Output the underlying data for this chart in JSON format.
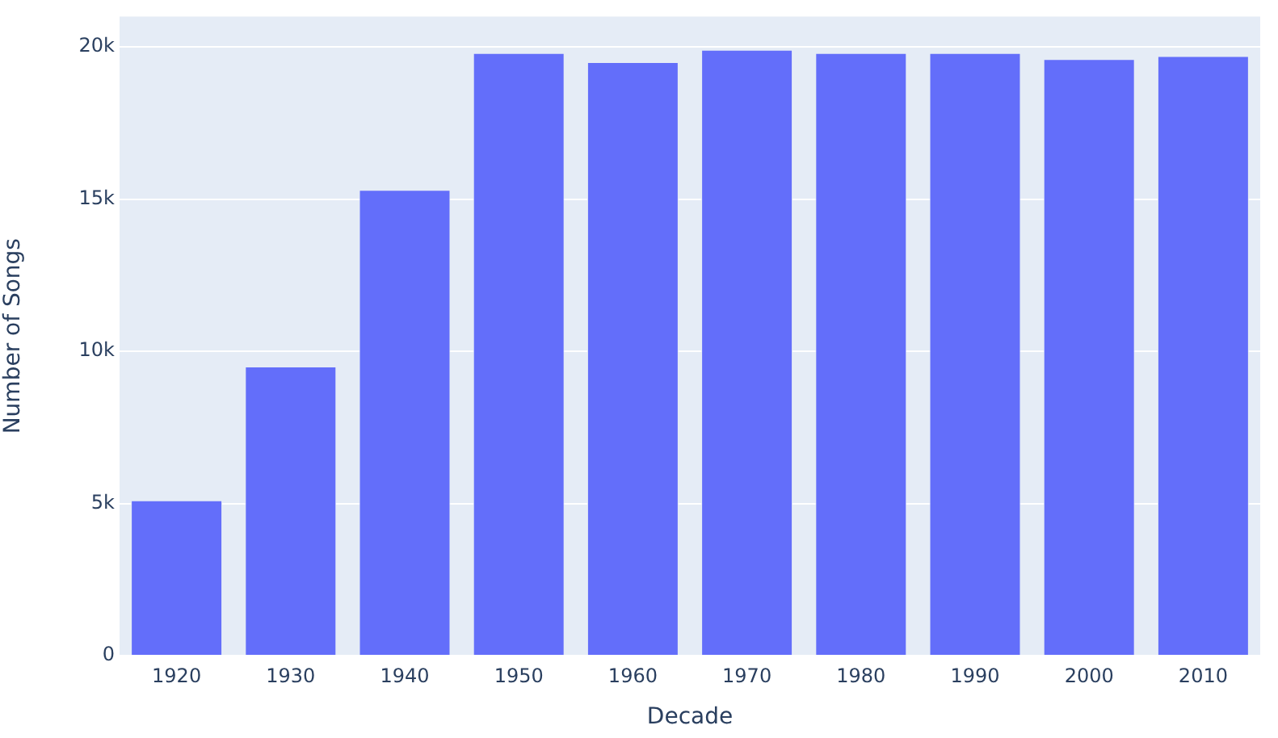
{
  "chart_data": {
    "type": "bar",
    "xlabel": "Decade",
    "ylabel": "Number of Songs",
    "categories": [
      "1920",
      "1930",
      "1940",
      "1950",
      "1960",
      "1970",
      "1980",
      "1990",
      "2000",
      "2010"
    ],
    "values": [
      5100,
      9500,
      15300,
      19800,
      19500,
      19900,
      19800,
      19800,
      19600,
      19700
    ],
    "color": "#636efa",
    "ylim": [
      0,
      21000
    ],
    "yticks": [
      0,
      {
        "value": 5000,
        "label": "5k"
      },
      {
        "value": 10000,
        "label": "10k"
      },
      {
        "value": 15000,
        "label": "15k"
      },
      {
        "value": 20000,
        "label": "20k"
      }
    ],
    "grid": "y"
  }
}
